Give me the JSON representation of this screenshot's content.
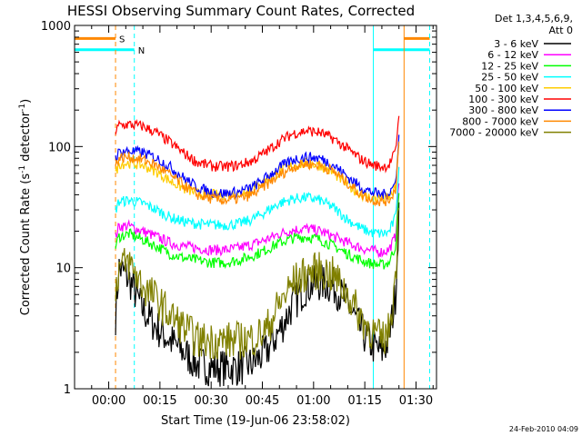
{
  "chart_data": {
    "type": "line",
    "title": "HESSI Observing Summary Count Rates, Corrected",
    "xlabel": "Start Time (19-Jun-06 23:58:02)",
    "ylabel_parts": {
      "prefix": "Corrected Count Rate (s",
      "sup1": "-1",
      "middle": " detector",
      "sup2": "-1",
      "suffix": ")"
    },
    "x_unit": "minutes since 23:58:02",
    "xlim": [
      -8,
      98
    ],
    "ylim": [
      1,
      1000
    ],
    "y_scale": "log",
    "x_ticks": [
      {
        "value": 2,
        "label": "00:00"
      },
      {
        "value": 17,
        "label": "00:15"
      },
      {
        "value": 32,
        "label": "00:30"
      },
      {
        "value": 47,
        "label": "00:45"
      },
      {
        "value": 62,
        "label": "01:00"
      },
      {
        "value": 77,
        "label": "01:15"
      },
      {
        "value": 92,
        "label": "01:30"
      }
    ],
    "y_ticks": [
      {
        "value": 1,
        "label": "1"
      },
      {
        "value": 10,
        "label": "10"
      },
      {
        "value": 100,
        "label": "100"
      },
      {
        "value": 1000,
        "label": "1000"
      }
    ],
    "legend": {
      "header_line1": "Det 1,3,4,5,6,9,",
      "header_line2": "Att 0",
      "position": "right"
    },
    "series": [
      {
        "name": "3 - 6 keV",
        "color": "#000000",
        "x": [
          4,
          5,
          8,
          12,
          16,
          20,
          24,
          28,
          32,
          36,
          40,
          44,
          48,
          52,
          56,
          60,
          64,
          68,
          72,
          76,
          79,
          82,
          84,
          86,
          87
        ],
        "values": [
          4,
          10,
          8,
          4.5,
          3.2,
          2.5,
          2,
          1.6,
          1.5,
          1.5,
          1.5,
          1.6,
          2,
          3,
          5,
          7,
          7.5,
          7,
          5,
          3,
          2.3,
          2,
          2.5,
          6,
          30
        ]
      },
      {
        "name": "6 - 12 keV",
        "color": "#ff00ff",
        "x": [
          4,
          5,
          8,
          12,
          16,
          20,
          24,
          28,
          32,
          36,
          40,
          44,
          48,
          52,
          56,
          60,
          64,
          68,
          72,
          76,
          79,
          82,
          84,
          86,
          87
        ],
        "values": [
          18,
          22,
          22,
          20,
          18,
          16,
          15,
          14.5,
          14,
          14,
          14.5,
          15.5,
          17,
          19,
          20.5,
          21,
          20,
          18,
          16,
          14.5,
          13.8,
          13.5,
          14,
          18,
          50
        ]
      },
      {
        "name": "12 - 25 keV",
        "color": "#00ff00",
        "x": [
          4,
          5,
          8,
          12,
          16,
          20,
          24,
          28,
          32,
          36,
          40,
          44,
          48,
          52,
          56,
          60,
          64,
          68,
          72,
          76,
          79,
          82,
          84,
          86,
          87
        ],
        "values": [
          15,
          18,
          19,
          17,
          15,
          13,
          12,
          11.5,
          11,
          11,
          11.5,
          12.5,
          14,
          16,
          17.5,
          18,
          17,
          15,
          13,
          11.5,
          10.8,
          10.5,
          11,
          15,
          40
        ]
      },
      {
        "name": "25 - 50 keV",
        "color": "#00ffff",
        "x": [
          4,
          5,
          8,
          12,
          16,
          20,
          24,
          28,
          32,
          36,
          40,
          44,
          48,
          52,
          56,
          60,
          64,
          68,
          72,
          76,
          79,
          82,
          84,
          86,
          87
        ],
        "values": [
          30,
          35,
          36,
          34,
          30,
          26,
          24,
          23,
          22.5,
          22.5,
          23,
          25,
          29,
          34,
          37,
          38,
          36,
          31,
          25,
          21,
          19.5,
          19,
          19.5,
          26,
          70
        ]
      },
      {
        "name": "50 - 100 keV",
        "color": "#ffcc00",
        "x": [
          4,
          5,
          8,
          12,
          16,
          20,
          24,
          28,
          32,
          36,
          40,
          44,
          48,
          52,
          56,
          60,
          64,
          68,
          72,
          76,
          79,
          82,
          84,
          86,
          87
        ],
        "values": [
          60,
          72,
          73,
          70,
          62,
          52,
          45,
          41,
          40,
          40,
          41,
          44,
          52,
          62,
          70,
          73,
          70,
          60,
          48,
          40,
          37.5,
          37,
          38,
          45,
          110
        ]
      },
      {
        "name": "100 - 300 keV",
        "color": "#ff0000",
        "x": [
          4,
          5,
          8,
          12,
          16,
          20,
          24,
          28,
          32,
          36,
          40,
          44,
          48,
          52,
          56,
          60,
          64,
          68,
          72,
          76,
          79,
          82,
          84,
          86,
          87
        ],
        "values": [
          130,
          150,
          152,
          147,
          130,
          108,
          88,
          74,
          69,
          68,
          70,
          76,
          90,
          110,
          128,
          135,
          130,
          115,
          95,
          78,
          71,
          68,
          70,
          90,
          190
        ]
      },
      {
        "name": "300 - 800 keV",
        "color": "#0000ff",
        "x": [
          4,
          5,
          8,
          12,
          16,
          20,
          24,
          28,
          32,
          36,
          40,
          44,
          48,
          52,
          56,
          60,
          64,
          68,
          72,
          76,
          79,
          82,
          84,
          86,
          87
        ],
        "values": [
          80,
          90,
          92,
          89,
          80,
          68,
          55,
          46,
          42,
          41,
          42,
          46,
          55,
          67,
          78,
          82,
          80,
          70,
          56,
          46,
          42,
          40,
          41,
          50,
          120
        ]
      },
      {
        "name": "800 - 7000 keV",
        "color": "#ff8800",
        "x": [
          4,
          5,
          8,
          12,
          16,
          20,
          24,
          28,
          32,
          36,
          40,
          44,
          48,
          52,
          56,
          60,
          64,
          68,
          72,
          76,
          79,
          82,
          84,
          86,
          87
        ],
        "values": [
          70,
          80,
          82,
          78,
          70,
          58,
          48,
          40,
          37,
          36,
          37,
          40,
          48,
          58,
          68,
          72,
          70,
          62,
          50,
          40,
          36.5,
          35,
          36,
          44,
          105
        ]
      },
      {
        "name": "7000 - 20000 keV",
        "color": "#808000",
        "x": [
          4,
          5,
          8,
          12,
          16,
          20,
          24,
          28,
          32,
          36,
          40,
          44,
          48,
          52,
          56,
          60,
          64,
          68,
          72,
          76,
          79,
          82,
          84,
          86,
          87
        ],
        "values": [
          7,
          10,
          11,
          7,
          5.5,
          4,
          3.2,
          2.5,
          2.5,
          2.5,
          2.5,
          2.6,
          3,
          5,
          7.5,
          9,
          9.5,
          8.5,
          6,
          3.8,
          3,
          2.5,
          3,
          8,
          40
        ]
      }
    ],
    "event_lines": [
      {
        "x": 4,
        "color": "#ff8800",
        "style": "dashed"
      },
      {
        "x": 9.5,
        "color": "#00ffff",
        "style": "dashed"
      },
      {
        "x": 79.5,
        "color": "#00ffff",
        "style": "solid"
      },
      {
        "x": 88.5,
        "color": "#ff8800",
        "style": "solid"
      },
      {
        "x": 96,
        "color": "#00ffff",
        "style": "dashed"
      }
    ],
    "flag_bars": [
      {
        "label": "S",
        "color": "#ff8800",
        "x_start": -8,
        "x_end": 4,
        "y": 780
      },
      {
        "label": "N",
        "color": "#00ffff",
        "x_start": -8,
        "x_end": 9.5,
        "y": 630
      },
      {
        "label": "",
        "color": "#ff8800",
        "x_start": 88.5,
        "x_end": 96,
        "y": 780
      },
      {
        "label": "",
        "color": "#00ffff",
        "x_start": 79.5,
        "x_end": 96,
        "y": 630
      }
    ]
  },
  "footer": {
    "date_stamp": "24-Feb-2010 04:09"
  }
}
